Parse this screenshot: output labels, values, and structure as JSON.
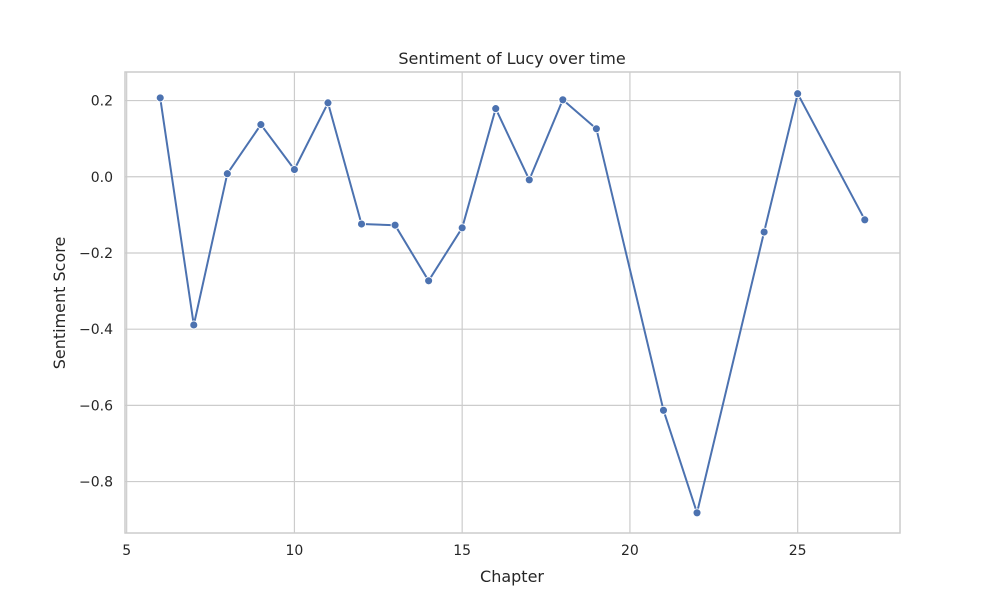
{
  "chart_data": {
    "type": "line",
    "title": "Sentiment of Lucy over time",
    "xlabel": "Chapter",
    "ylabel": "Sentiment Score",
    "xlim": [
      4.95,
      28.05
    ],
    "ylim": [
      -0.935,
      0.275
    ],
    "x_ticks": [
      5,
      10,
      15,
      20,
      25
    ],
    "y_ticks": [
      0.2,
      0.0,
      -0.2,
      -0.4,
      -0.6,
      -0.8
    ],
    "y_tick_labels": [
      "0.2",
      "0.0",
      "−0.2",
      "−0.4",
      "−0.6",
      "−0.8"
    ],
    "grid": true,
    "series": [
      {
        "color": "#4c72b0",
        "marker": "circle",
        "x": [
          6,
          7,
          8,
          9,
          10,
          11,
          12,
          13,
          14,
          15,
          16,
          17,
          18,
          19,
          21,
          22,
          24,
          25,
          27
        ],
        "y": [
          0.207,
          -0.389,
          0.008,
          0.137,
          0.019,
          0.194,
          -0.124,
          -0.127,
          -0.273,
          -0.134,
          0.179,
          -0.008,
          0.202,
          0.126,
          -0.613,
          -0.882,
          -0.145,
          0.218,
          -0.113
        ]
      }
    ]
  }
}
